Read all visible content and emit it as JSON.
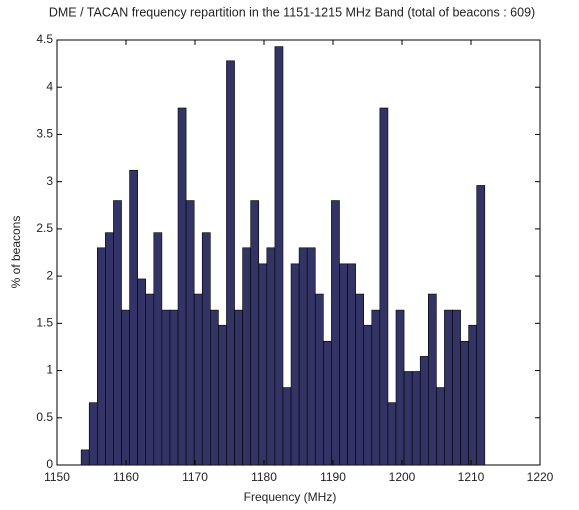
{
  "chart_data": {
    "type": "histogram",
    "title": "DME / TACAN frequency repartition in the 1151-1215 MHz Band (total of beacons : 609)",
    "xlabel": "Frequency (MHz)",
    "ylabel": "% of beacons",
    "bins": [
      1153.5,
      1154.67,
      1155.84,
      1157.01,
      1158.18,
      1159.35,
      1160.52,
      1161.69,
      1162.86,
      1164.03,
      1165.2,
      1166.37,
      1167.54,
      1168.71,
      1169.88,
      1171.05,
      1172.22,
      1173.39,
      1174.56,
      1175.73,
      1176.9,
      1178.07,
      1179.24,
      1180.41,
      1181.58,
      1182.75,
      1183.92,
      1185.09,
      1186.26,
      1187.43,
      1188.6,
      1189.77,
      1190.94,
      1192.11,
      1193.28,
      1194.45,
      1195.62,
      1196.79,
      1197.96,
      1199.13,
      1200.3,
      1201.47,
      1202.64,
      1203.81,
      1204.98,
      1206.15,
      1207.32,
      1208.49,
      1209.66,
      1210.83,
      1212.0
    ],
    "values": [
      0.16,
      0.66,
      2.3,
      2.46,
      2.8,
      1.64,
      3.12,
      1.97,
      1.81,
      2.46,
      1.64,
      1.64,
      3.78,
      2.8,
      1.81,
      2.46,
      1.64,
      1.48,
      4.28,
      1.64,
      2.3,
      2.8,
      2.13,
      2.3,
      4.43,
      0.82,
      2.13,
      2.3,
      2.3,
      1.81,
      1.31,
      2.8,
      2.13,
      2.13,
      1.81,
      1.48,
      1.64,
      3.78,
      0.66,
      1.64,
      0.99,
      0.99,
      1.15,
      1.81,
      0.82,
      1.64,
      1.64,
      1.31,
      1.48,
      2.96
    ],
    "color": "#333366",
    "xlim": [
      1150,
      1220
    ],
    "xticks": [
      1150,
      1160,
      1170,
      1180,
      1190,
      1200,
      1210,
      1220
    ],
    "ylim": [
      0,
      4.5
    ],
    "yticks": [
      0,
      0.5,
      1,
      1.5,
      2,
      2.5,
      3,
      3.5,
      4,
      4.5
    ],
    "grid": false
  }
}
